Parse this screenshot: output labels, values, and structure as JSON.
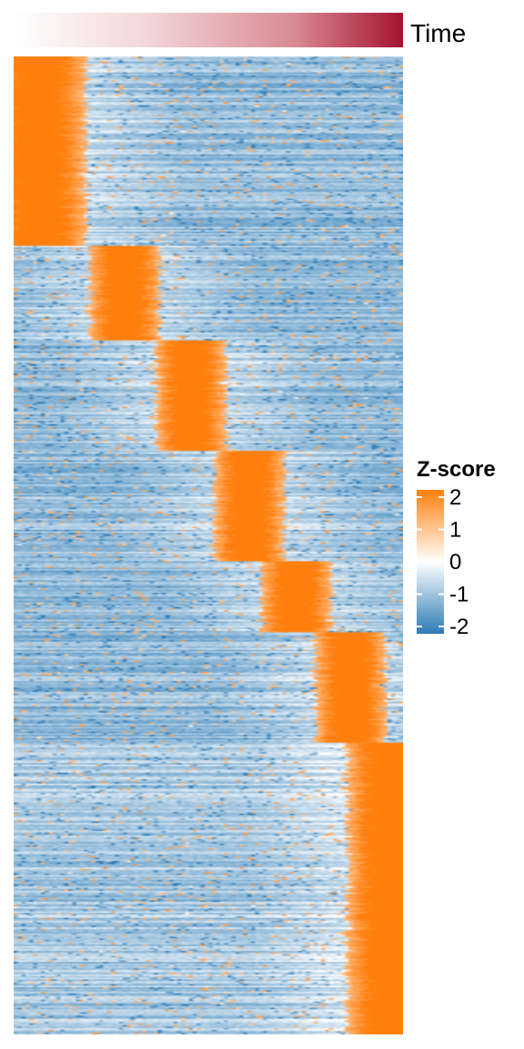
{
  "chart_data": {
    "type": "heatmap",
    "title": "",
    "xlabel": "",
    "ylabel": "",
    "annotation": {
      "label": "Time",
      "gradient": [
        "#ffffff",
        "#f3d7d9",
        "#d88b93",
        "#a51230"
      ]
    },
    "legend": {
      "title": "Z-score",
      "placement": "right",
      "ticks": [
        "2",
        "1",
        "0",
        "-1",
        "-2"
      ],
      "range": [
        -2,
        2
      ],
      "colors": {
        "low": "#2c7bb6",
        "mid": "#ffffff",
        "high": "#ff7f0e"
      }
    },
    "rows": 620,
    "columns": 100,
    "row_groups": [
      {
        "peak_column": 6,
        "rows": 120
      },
      {
        "peak_column": 28,
        "rows": 60
      },
      {
        "peak_column": 45,
        "rows": 70
      },
      {
        "peak_column": 60,
        "rows": 70
      },
      {
        "peak_column": 72,
        "rows": 45
      },
      {
        "peak_column": 86,
        "rows": 70
      },
      {
        "peak_column": 96,
        "rows": 185
      }
    ]
  }
}
